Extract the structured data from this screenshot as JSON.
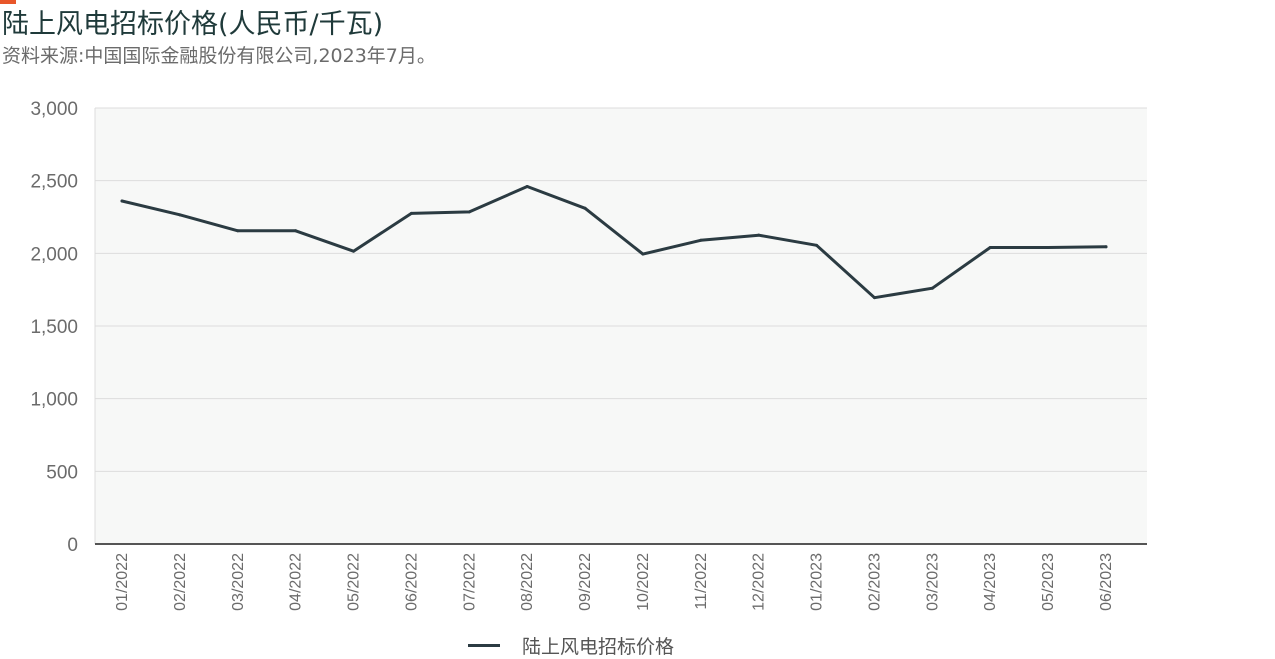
{
  "header": {
    "title": "陆上风电招标价格(人民币/千瓦)",
    "source": "资料来源:中国国际金融股份有限公司,2023年7月。"
  },
  "colors": {
    "accent": "#e8562a",
    "line": "#2b3b42",
    "plot_background": "#f7f8f7",
    "grid": "#dcdcdc",
    "axis": "#555555"
  },
  "chart_data": {
    "type": "line",
    "title": "陆上风电招标价格(人民币/千瓦)",
    "xlabel": "",
    "ylabel": "",
    "categories": [
      "01/2022",
      "02/2022",
      "03/2022",
      "04/2022",
      "05/2022",
      "06/2022",
      "07/2022",
      "08/2022",
      "09/2022",
      "10/2022",
      "11/2022",
      "12/2022",
      "01/2023",
      "02/2023",
      "03/2023",
      "04/2023",
      "05/2023",
      "06/2023"
    ],
    "series": [
      {
        "name": "陆上风电招标价格",
        "values": [
          2360,
          2265,
          2155,
          2155,
          2015,
          2275,
          2285,
          2460,
          2310,
          1995,
          2090,
          2125,
          2055,
          1695,
          1760,
          2040,
          2040,
          2045
        ]
      }
    ],
    "ylim": [
      0,
      3000
    ],
    "yticks": [
      0,
      500,
      1000,
      1500,
      2000,
      2500,
      3000
    ],
    "ytick_labels": [
      "0",
      "500",
      "1,000",
      "1,500",
      "2,000",
      "2,500",
      "3,000"
    ],
    "grid": true,
    "legend_position": "bottom-center"
  }
}
